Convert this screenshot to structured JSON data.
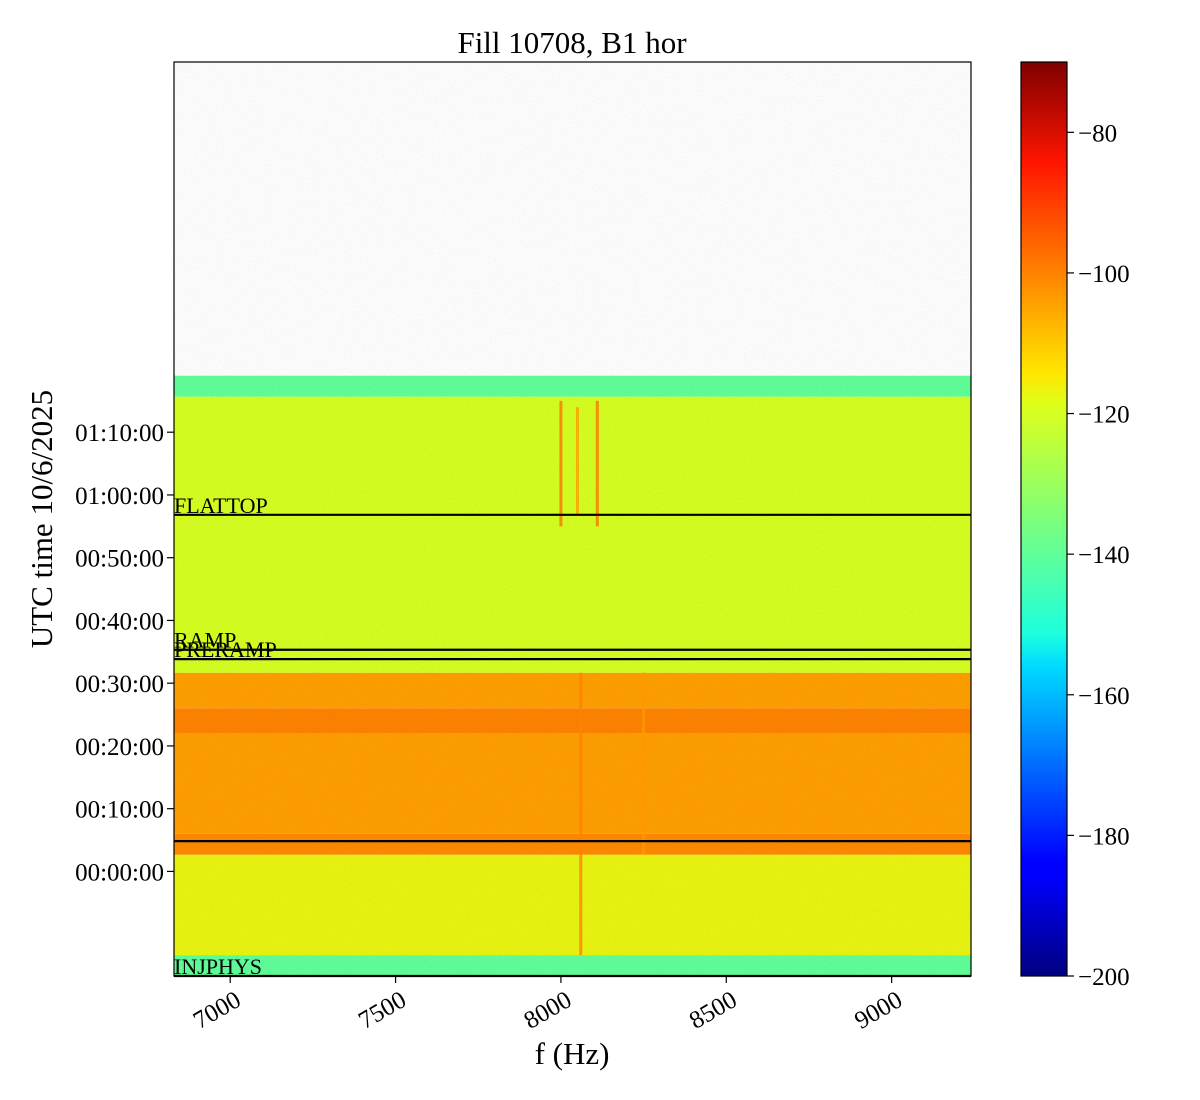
{
  "chart_data": {
    "type": "heatmap",
    "title": "Fill 10708, B1 hor",
    "xlabel": "f (Hz)",
    "ylabel": "UTC time 10/6/2025",
    "xlim": [
      6830,
      9240
    ],
    "x_ticks": [
      7000,
      7500,
      8000,
      8500,
      9000
    ],
    "x_tick_labels": [
      "7000",
      "7500",
      "8000",
      "8500",
      "9000"
    ],
    "y_range_seconds": [
      -1000,
      7740
    ],
    "y_ticks_seconds": [
      0,
      600,
      1200,
      1800,
      2400,
      3000,
      3600,
      4200
    ],
    "y_tick_labels": [
      "00:00:00",
      "00:10:00",
      "00:20:00",
      "00:30:00",
      "00:40:00",
      "00:50:00",
      "01:00:00",
      "01:10:00"
    ],
    "colormap": "jet",
    "colorbar": {
      "range": [
        -200,
        -70
      ],
      "ticks": [
        -80,
        -100,
        -120,
        -140,
        -160,
        -180,
        -200
      ],
      "tick_labels": [
        "−80",
        "−100",
        "−120",
        "−140",
        "−160",
        "−180",
        "−200"
      ]
    },
    "intensity_bands": [
      {
        "from": "-00:16:40",
        "to": "-00:13:20",
        "level_db": -140
      },
      {
        "from": "-00:13:20",
        "to": "00:02:40",
        "level_db": -117
      },
      {
        "from": "00:02:40",
        "to": "00:06:00",
        "level_db": -101
      },
      {
        "from": "00:06:00",
        "to": "00:22:00",
        "level_db": -104
      },
      {
        "from": "00:22:00",
        "to": "00:26:00",
        "level_db": -100
      },
      {
        "from": "00:26:00",
        "to": "00:31:40",
        "level_db": -104
      },
      {
        "from": "00:31:40",
        "to": "01:15:40",
        "level_db": -120
      },
      {
        "from": "01:15:40",
        "to": "01:19:00",
        "level_db": -140
      }
    ],
    "spectral_lines": [
      {
        "f_hz": 8000,
        "from": "00:55:00",
        "to": "01:15:00",
        "level_db": -98
      },
      {
        "f_hz": 8050,
        "from": "00:57:00",
        "to": "01:14:00",
        "level_db": -104
      },
      {
        "f_hz": 8110,
        "from": "00:55:00",
        "to": "01:15:00",
        "level_db": -98
      },
      {
        "f_hz": 8060,
        "from": "-00:13:20",
        "to": "00:31:40",
        "level_db": -100
      },
      {
        "f_hz": 8250,
        "from": "00:02:40",
        "to": "00:31:40",
        "level_db": -103
      },
      {
        "f_hz": 8690,
        "from": "00:06:00",
        "to": "00:13:00",
        "level_db": -103
      }
    ],
    "events": [
      {
        "label": "FLATTOP",
        "time": "00:56:50"
      },
      {
        "label": "RAMP",
        "time": "00:35:20"
      },
      {
        "label": "PRERAMP",
        "time": "00:33:50"
      },
      {
        "label": "",
        "time": "00:04:50"
      },
      {
        "label": "INJPHYS",
        "time": "-00:16:40"
      }
    ]
  }
}
